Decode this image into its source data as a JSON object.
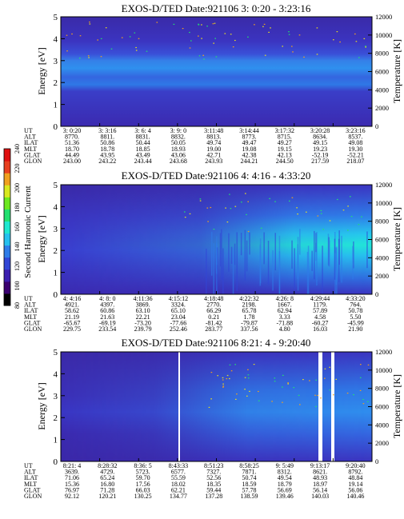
{
  "panels": [
    {
      "title": "EXOS-D/TED   Date:921106  3: 0:20 - 3:23:16",
      "ylabel": "Energy [eV]",
      "y2label": "Temperature [K]",
      "orbit_rows": [
        {
          "label": "UT",
          "values": [
            "3: 0:20",
            "3: 3:16",
            "3: 6: 4",
            "3: 9: 0",
            "3:11:48",
            "3:14:44",
            "3:17:32",
            "3:20:28",
            "3:23:16"
          ]
        },
        {
          "label": "ALT",
          "values": [
            "8770.",
            "8811.",
            "8831.",
            "8832.",
            "8813.",
            "8773.",
            "8715.",
            "8634.",
            "8537."
          ]
        },
        {
          "label": "ILAT",
          "values": [
            "51.36",
            "50.86",
            "50.44",
            "50.05",
            "49.74",
            "49.47",
            "49.27",
            "49.15",
            "49.08"
          ]
        },
        {
          "label": "MLT",
          "values": [
            "18.70",
            "18.78",
            "18.85",
            "18.93",
            "19.00",
            "19.08",
            "19.15",
            "19.23",
            "19.30"
          ]
        },
        {
          "label": "GLAT",
          "values": [
            "44.49",
            "43.95",
            "43.49",
            "43.06",
            "42.71",
            "42.38",
            "42.13",
            "-52.19",
            "-52.21"
          ]
        },
        {
          "label": "GLON",
          "values": [
            "243.00",
            "243.22",
            "243.44",
            "243.68",
            "243.93",
            "244.21",
            "244.50",
            "217.59",
            "218.07"
          ]
        }
      ]
    },
    {
      "title": "EXOS-D/TED   Date:921106  4: 4:16 - 4:33:20",
      "ylabel": "Energy [eV]",
      "y2label": "Temperature [K]",
      "orbit_rows": [
        {
          "label": "UT",
          "values": [
            "4: 4:16",
            "4: 8: 0",
            "4:11:36",
            "4:15:12",
            "4:18:48",
            "4:22:32",
            "4:26: 8",
            "4:29:44",
            "4:33:20"
          ]
        },
        {
          "label": "ALT",
          "values": [
            "4921.",
            "4397.",
            "3869.",
            "3324.",
            "2770.",
            "2198.",
            "1667.",
            "1179.",
            "764."
          ]
        },
        {
          "label": "ILAT",
          "values": [
            "58.62",
            "60.86",
            "63.10",
            "65.10",
            "66.29",
            "65.78",
            "62.94",
            "57.89",
            "50.78"
          ]
        },
        {
          "label": "MLT",
          "values": [
            "21.19",
            "21.63",
            "22.21",
            "23.04",
            "0.21",
            "1.78",
            "3.33",
            "4.58",
            "5.50"
          ]
        },
        {
          "label": "GLAT",
          "values": [
            "-65.67",
            "-69.19",
            "-73.20",
            "-77.66",
            "-81.42",
            "-79.87",
            "-71.88",
            "-60.27",
            "-45.99"
          ]
        },
        {
          "label": "GLON",
          "values": [
            "229.75",
            "233.54",
            "239.79",
            "252.46",
            "283.77",
            "337.56",
            "4.80",
            "16.03",
            "21.90"
          ]
        }
      ]
    },
    {
      "title": "EXOS-D/TED   Date:921106  8:21: 4 - 9:20:40",
      "ylabel": "Energy [eV]",
      "y2label": "Temperature [K]",
      "orbit_rows": [
        {
          "label": "UT",
          "values": [
            "8:21: 4",
            "8:28:32",
            "8:36: 5",
            "8:43:33",
            "8:51:23",
            "8:58:25",
            "9: 5:49",
            "9:13:17",
            "9:20:40"
          ]
        },
        {
          "label": "ALT",
          "values": [
            "3639.",
            "4729.",
            "5723.",
            "6577.",
            "7327.",
            "7871.",
            "8312.",
            "8621.",
            "8792."
          ]
        },
        {
          "label": "ILAT",
          "values": [
            "71.06",
            "65.24",
            "59.70",
            "55.59",
            "52.56",
            "50.74",
            "49.54",
            "48.93",
            "48.84"
          ]
        },
        {
          "label": "MLT",
          "values": [
            "15.36",
            "16.80",
            "17.56",
            "18.02",
            "18.35",
            "18.59",
            "18.79",
            "18.97",
            "19.14"
          ]
        },
        {
          "label": "GLAT",
          "values": [
            "76.97",
            "71.28",
            "66.03",
            "62.21",
            "59.44",
            "57.78",
            "56.69",
            "56.14",
            "56.06"
          ]
        },
        {
          "label": "GLON",
          "values": [
            "92.12",
            "120.21",
            "130.25",
            "134.77",
            "137.28",
            "138.59",
            "139.46",
            "140.03",
            "140.46"
          ]
        }
      ]
    }
  ],
  "colorbar": {
    "label": "Second Harmonic Current",
    "ticks": [
      "80",
      "100",
      "120",
      "140",
      "160",
      "180",
      "200",
      "220",
      "240"
    ],
    "colors": [
      "#000000",
      "#3a0070",
      "#3b1fb0",
      "#3246d6",
      "#2f7ce8",
      "#26c0ee",
      "#1fe8d0",
      "#22e070",
      "#6de820",
      "#d8e820",
      "#f0a020",
      "#e84020",
      "#e01010"
    ]
  },
  "chart_data": [
    {
      "type": "heatmap",
      "title": "EXOS-D/TED   Date:921106  3: 0:20 - 3:23:16",
      "ylabel": "Energy [eV]",
      "y2label": "Temperature [K]",
      "ylim": [
        0,
        5
      ],
      "yticks": [
        0,
        1,
        2,
        3,
        4,
        5
      ],
      "y2lim": [
        0,
        12000
      ],
      "y2ticks": [
        0,
        2000,
        4000,
        6000,
        8000,
        10000,
        12000
      ],
      "x": [
        "3: 0:20",
        "3: 3:16",
        "3: 6: 4",
        "3: 9: 0",
        "3:11:48",
        "3:14:44",
        "3:17:32",
        "3:20:28",
        "3:23:16"
      ],
      "color_range": [
        80,
        240
      ]
    },
    {
      "type": "heatmap",
      "title": "EXOS-D/TED   Date:921106  4: 4:16 - 4:33:20",
      "ylabel": "Energy [eV]",
      "y2label": "Temperature [K]",
      "ylim": [
        0,
        5
      ],
      "yticks": [
        0,
        1,
        2,
        3,
        4,
        5
      ],
      "y2lim": [
        0,
        12000
      ],
      "y2ticks": [
        0,
        2000,
        4000,
        6000,
        8000,
        10000,
        12000
      ],
      "x": [
        "4: 4:16",
        "4: 8: 0",
        "4:11:36",
        "4:15:12",
        "4:18:48",
        "4:22:32",
        "4:26: 8",
        "4:29:44",
        "4:33:20"
      ],
      "color_range": [
        80,
        240
      ]
    },
    {
      "type": "heatmap",
      "title": "EXOS-D/TED   Date:921106  8:21: 4 - 9:20:40",
      "ylabel": "Energy [eV]",
      "y2label": "Temperature [K]",
      "ylim": [
        0,
        5
      ],
      "yticks": [
        0,
        1,
        2,
        3,
        4,
        5
      ],
      "y2lim": [
        0,
        12000
      ],
      "y2ticks": [
        0,
        2000,
        4000,
        6000,
        8000,
        10000,
        12000
      ],
      "x": [
        "8:21: 4",
        "8:28:32",
        "8:36: 5",
        "8:43:33",
        "8:51:23",
        "8:58:25",
        "9: 5:49",
        "9:13:17",
        "9:20:40"
      ],
      "color_range": [
        80,
        240
      ]
    }
  ]
}
